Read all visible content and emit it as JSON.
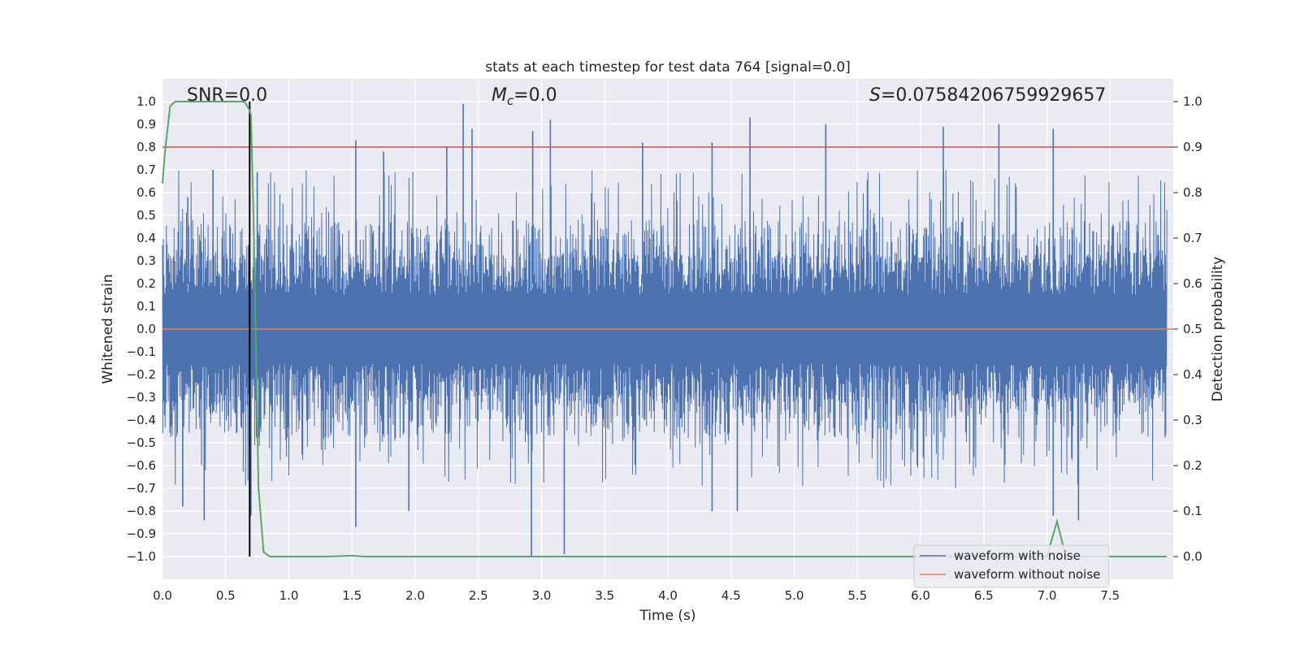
{
  "chart_data": {
    "type": "line",
    "title": "stats at each timestep for test data 764 [signal=0.0]",
    "xlabel": "Time (s)",
    "ylabel": "Whitened strain",
    "y2label": "Detection probability",
    "xlim": [
      0.0,
      8.0
    ],
    "ylim": [
      -1.1,
      1.1
    ],
    "y2lim": [
      -0.05,
      1.05
    ],
    "x_ticks": [
      0.0,
      0.5,
      1.0,
      1.5,
      2.0,
      2.5,
      3.0,
      3.5,
      4.0,
      4.5,
      5.0,
      5.5,
      6.0,
      6.5,
      7.0,
      7.5
    ],
    "x_tick_labels": [
      "0.0",
      "0.5",
      "1.0",
      "1.5",
      "2.0",
      "2.5",
      "3.0",
      "3.5",
      "4.0",
      "4.5",
      "5.0",
      "5.5",
      "6.0",
      "6.5",
      "7.0",
      "7.5"
    ],
    "y_ticks": [
      1.0,
      0.9,
      0.8,
      0.7,
      0.6,
      0.5,
      0.4,
      0.3,
      0.2,
      0.1,
      0.0,
      -0.1,
      -0.2,
      -0.3,
      -0.4,
      -0.5,
      -0.6,
      -0.7,
      -0.8,
      -0.9,
      -1.0
    ],
    "y_tick_labels": [
      "1.0",
      "0.9",
      "0.8",
      "0.7",
      "0.6",
      "0.5",
      "0.4",
      "0.3",
      "0.2",
      "0.1",
      "0.0",
      "−0.1",
      "−0.2",
      "−0.3",
      "−0.4",
      "−0.5",
      "−0.6",
      "−0.7",
      "−0.8",
      "−0.9",
      "−1.0"
    ],
    "y2_ticks": [
      1.0,
      0.9,
      0.8,
      0.7,
      0.6,
      0.5,
      0.4,
      0.3,
      0.2,
      0.1,
      0.0
    ],
    "y2_tick_labels": [
      "1.0",
      "0.9",
      "0.8",
      "0.7",
      "0.6",
      "0.5",
      "0.4",
      "0.3",
      "0.2",
      "0.1",
      "0.0"
    ],
    "grid": true,
    "legend_position": "bottom-right",
    "annotations": {
      "snr": "SNR=0.0",
      "mc_symbol": "M",
      "mc_sub": "c",
      "mc_value": "=0.0",
      "s_symbol": "S",
      "s_value": "=0.07584206759929657"
    },
    "series": [
      {
        "name": "waveform with noise",
        "color": "#4c72b0",
        "axis": "left",
        "style": "dense-noise",
        "envelope_typical": [
          -0.35,
          0.35
        ],
        "peaks": [
          {
            "x": 0.2,
            "y": 0.58
          },
          {
            "x": 0.4,
            "y": 0.7
          },
          {
            "x": 0.75,
            "y": 0.69
          },
          {
            "x": 1.53,
            "y": 0.83
          },
          {
            "x": 1.75,
            "y": 0.78
          },
          {
            "x": 2.25,
            "y": 0.8
          },
          {
            "x": 2.38,
            "y": 0.99
          },
          {
            "x": 2.45,
            "y": 0.88
          },
          {
            "x": 2.93,
            "y": 0.87
          },
          {
            "x": 3.07,
            "y": 0.92
          },
          {
            "x": 3.8,
            "y": 0.82
          },
          {
            "x": 4.35,
            "y": 0.82
          },
          {
            "x": 4.65,
            "y": 0.93
          },
          {
            "x": 5.25,
            "y": 0.9
          },
          {
            "x": 6.18,
            "y": 0.89
          },
          {
            "x": 6.62,
            "y": 0.9
          },
          {
            "x": 7.05,
            "y": 0.88
          }
        ],
        "troughs": [
          {
            "x": 0.16,
            "y": -0.78
          },
          {
            "x": 0.33,
            "y": -0.84
          },
          {
            "x": 0.7,
            "y": -0.82
          },
          {
            "x": 1.53,
            "y": -0.87
          },
          {
            "x": 1.95,
            "y": -0.8
          },
          {
            "x": 2.92,
            "y": -1.0
          },
          {
            "x": 3.18,
            "y": -0.99
          },
          {
            "x": 4.35,
            "y": -0.8
          },
          {
            "x": 4.55,
            "y": -0.8
          },
          {
            "x": 7.05,
            "y": -0.82
          },
          {
            "x": 7.25,
            "y": -0.84
          }
        ]
      },
      {
        "name": "waveform without noise",
        "color": "#dd8452",
        "axis": "left",
        "x": [
          0.0,
          8.0
        ],
        "y": [
          0.0,
          0.0
        ]
      },
      {
        "name": "",
        "color": "#55a868",
        "axis": "right",
        "x": [
          0.0,
          0.02,
          0.06,
          0.1,
          0.2,
          0.4,
          0.6,
          0.65,
          0.69,
          0.7,
          0.72,
          0.74,
          0.76,
          0.8,
          0.85,
          1.0,
          1.3,
          1.5,
          1.6,
          2.0,
          3.0,
          4.0,
          5.0,
          6.0,
          6.9,
          7.0,
          7.08,
          7.15,
          7.5,
          7.95
        ],
        "y": [
          0.82,
          0.89,
          0.99,
          1.0,
          1.0,
          1.0,
          1.0,
          1.0,
          0.98,
          0.97,
          0.75,
          0.45,
          0.15,
          0.01,
          0.0,
          0.0,
          0.0,
          0.002,
          0.0,
          0.0,
          0.0,
          0.0,
          0.0,
          0.0,
          0.0,
          0.0,
          0.077,
          0.0,
          0.0,
          0.0
        ]
      }
    ],
    "reference_lines": {
      "threshold_hline": {
        "value": 0.9,
        "axis": "right",
        "color": "#c44e52"
      },
      "event_vline": {
        "x": 0.69,
        "y_range": [
          -1.0,
          1.0
        ],
        "color": "#000000"
      }
    }
  }
}
